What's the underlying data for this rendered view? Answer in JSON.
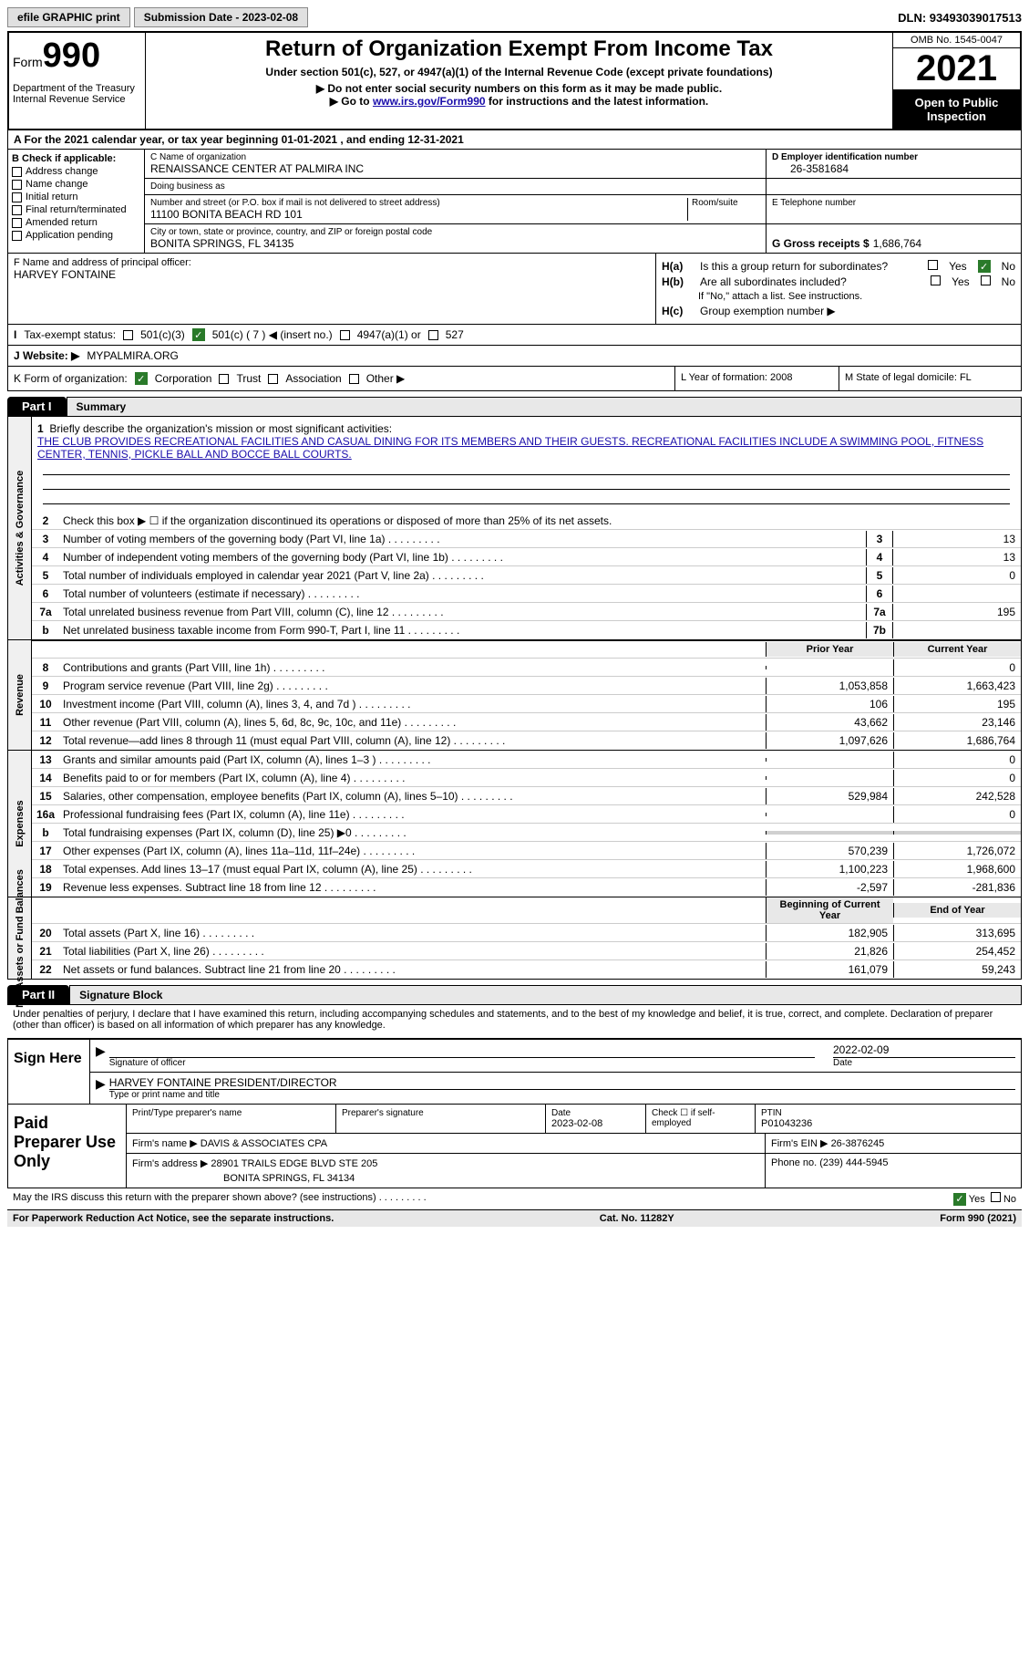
{
  "topbar": {
    "efile": "efile GRAPHIC print",
    "submission": "Submission Date - 2023-02-08",
    "dln": "DLN: 93493039017513"
  },
  "header": {
    "form_prefix": "Form",
    "form_num": "990",
    "title": "Return of Organization Exempt From Income Tax",
    "subtitle": "Under section 501(c), 527, or 4947(a)(1) of the Internal Revenue Code (except private foundations)",
    "instr1": "▶ Do not enter social security numbers on this form as it may be made public.",
    "instr2_pre": "▶ Go to ",
    "instr2_link": "www.irs.gov/Form990",
    "instr2_post": " for instructions and the latest information.",
    "dept": "Department of the Treasury\nInternal Revenue Service",
    "omb": "OMB No. 1545-0047",
    "year": "2021",
    "open": "Open to Public Inspection"
  },
  "row_a": "A For the 2021 calendar year, or tax year beginning 01-01-2021   , and ending 12-31-2021",
  "col_b": {
    "hdr": "B Check if applicable:",
    "items": [
      "Address change",
      "Name change",
      "Initial return",
      "Final return/terminated",
      "Amended return",
      "Application pending"
    ]
  },
  "block_c": {
    "name_lbl": "C Name of organization",
    "name": "RENAISSANCE CENTER AT PALMIRA INC",
    "dba_lbl": "Doing business as",
    "dba": "",
    "addr_lbl": "Number and street (or P.O. box if mail is not delivered to street address)",
    "room_lbl": "Room/suite",
    "addr": "11100 BONITA BEACH RD 101",
    "city_lbl": "City or town, state or province, country, and ZIP or foreign postal code",
    "city": "BONITA SPRINGS, FL  34135"
  },
  "block_d": {
    "ein_lbl": "D Employer identification number",
    "ein": "26-3581684",
    "tel_lbl": "E Telephone number",
    "tel": "",
    "gross_lbl": "G Gross receipts $",
    "gross": "1,686,764"
  },
  "block_f": {
    "lbl": "F Name and address of principal officer:",
    "name": "HARVEY FONTAINE"
  },
  "block_h": {
    "ha": "Is this a group return for subordinates?",
    "hb": "Are all subordinates included?",
    "hb_note": "If \"No,\" attach a list. See instructions.",
    "hc": "Group exemption number ▶",
    "yes": "Yes",
    "no": "No"
  },
  "block_i": {
    "lbl": "Tax-exempt status:",
    "o1": "501(c)(3)",
    "o2": "501(c) ( 7 ) ◀ (insert no.)",
    "o3": "4947(a)(1) or",
    "o4": "527"
  },
  "block_j": {
    "lbl": "J   Website: ▶",
    "val": "MYPALMIRA.ORG"
  },
  "block_k": {
    "lbl": "K Form of organization:",
    "o1": "Corporation",
    "o2": "Trust",
    "o3": "Association",
    "o4": "Other ▶"
  },
  "block_l": "L Year of formation: 2008",
  "block_m": "M State of legal domicile: FL",
  "part1": {
    "tab": "Part I",
    "title": "Summary",
    "mission_lbl": "Briefly describe the organization's mission or most significant activities:",
    "mission": "THE CLUB PROVIDES RECREATIONAL FACILITIES AND CASUAL DINING FOR ITS MEMBERS AND THEIR GUESTS. RECREATIONAL FACILITIES INCLUDE A SWIMMING POOL, FITNESS CENTER, TENNIS, PICKLE BALL AND BOCCE BALL COURTS.",
    "line2": "Check this box ▶ ☐ if the organization discontinued its operations or disposed of more than 25% of its net assets.",
    "lines_gov": [
      {
        "n": "3",
        "t": "Number of voting members of the governing body (Part VI, line 1a)",
        "b": "3",
        "v": "13"
      },
      {
        "n": "4",
        "t": "Number of independent voting members of the governing body (Part VI, line 1b)",
        "b": "4",
        "v": "13"
      },
      {
        "n": "5",
        "t": "Total number of individuals employed in calendar year 2021 (Part V, line 2a)",
        "b": "5",
        "v": "0"
      },
      {
        "n": "6",
        "t": "Total number of volunteers (estimate if necessary)",
        "b": "6",
        "v": ""
      },
      {
        "n": "7a",
        "t": "Total unrelated business revenue from Part VIII, column (C), line 12",
        "b": "7a",
        "v": "195"
      },
      {
        "n": "b",
        "t": "Net unrelated business taxable income from Form 990-T, Part I, line 11",
        "b": "7b",
        "v": ""
      }
    ],
    "col_hdrs": {
      "prior": "Prior Year",
      "current": "Current Year",
      "begin": "Beginning of Current Year",
      "end": "End of Year"
    },
    "revenue": [
      {
        "n": "8",
        "t": "Contributions and grants (Part VIII, line 1h)",
        "p": "",
        "c": "0"
      },
      {
        "n": "9",
        "t": "Program service revenue (Part VIII, line 2g)",
        "p": "1,053,858",
        "c": "1,663,423"
      },
      {
        "n": "10",
        "t": "Investment income (Part VIII, column (A), lines 3, 4, and 7d )",
        "p": "106",
        "c": "195"
      },
      {
        "n": "11",
        "t": "Other revenue (Part VIII, column (A), lines 5, 6d, 8c, 9c, 10c, and 11e)",
        "p": "43,662",
        "c": "23,146"
      },
      {
        "n": "12",
        "t": "Total revenue—add lines 8 through 11 (must equal Part VIII, column (A), line 12)",
        "p": "1,097,626",
        "c": "1,686,764"
      }
    ],
    "expenses": [
      {
        "n": "13",
        "t": "Grants and similar amounts paid (Part IX, column (A), lines 1–3 )",
        "p": "",
        "c": "0"
      },
      {
        "n": "14",
        "t": "Benefits paid to or for members (Part IX, column (A), line 4)",
        "p": "",
        "c": "0"
      },
      {
        "n": "15",
        "t": "Salaries, other compensation, employee benefits (Part IX, column (A), lines 5–10)",
        "p": "529,984",
        "c": "242,528"
      },
      {
        "n": "16a",
        "t": "Professional fundraising fees (Part IX, column (A), line 11e)",
        "p": "",
        "c": "0"
      },
      {
        "n": "b",
        "t": "Total fundraising expenses (Part IX, column (D), line 25) ▶0",
        "p": "gray",
        "c": "gray"
      },
      {
        "n": "17",
        "t": "Other expenses (Part IX, column (A), lines 11a–11d, 11f–24e)",
        "p": "570,239",
        "c": "1,726,072"
      },
      {
        "n": "18",
        "t": "Total expenses. Add lines 13–17 (must equal Part IX, column (A), line 25)",
        "p": "1,100,223",
        "c": "1,968,600"
      },
      {
        "n": "19",
        "t": "Revenue less expenses. Subtract line 18 from line 12",
        "p": "-2,597",
        "c": "-281,836"
      }
    ],
    "netassets": [
      {
        "n": "20",
        "t": "Total assets (Part X, line 16)",
        "p": "182,905",
        "c": "313,695"
      },
      {
        "n": "21",
        "t": "Total liabilities (Part X, line 26)",
        "p": "21,826",
        "c": "254,452"
      },
      {
        "n": "22",
        "t": "Net assets or fund balances. Subtract line 21 from line 20",
        "p": "161,079",
        "c": "59,243"
      }
    ],
    "vlabels": {
      "gov": "Activities & Governance",
      "rev": "Revenue",
      "exp": "Expenses",
      "net": "Net Assets or Fund Balances"
    }
  },
  "part2": {
    "tab": "Part II",
    "title": "Signature Block",
    "decl": "Under penalties of perjury, I declare that I have examined this return, including accompanying schedules and statements, and to the best of my knowledge and belief, it is true, correct, and complete. Declaration of preparer (other than officer) is based on all information of which preparer has any knowledge.",
    "sign_here": "Sign Here",
    "sig_officer": "Signature of officer",
    "sig_date": "2022-02-09",
    "sig_date_lbl": "Date",
    "sig_name": "HARVEY FONTAINE  PRESIDENT/DIRECTOR",
    "sig_name_lbl": "Type or print name and title",
    "paid": "Paid Preparer Use Only",
    "prep_name_lbl": "Print/Type preparer's name",
    "prep_sig_lbl": "Preparer's signature",
    "prep_date_lbl": "Date",
    "prep_date": "2023-02-08",
    "self_emp": "Check ☐ if self-employed",
    "ptin_lbl": "PTIN",
    "ptin": "P01043236",
    "firm_name_lbl": "Firm's name    ▶",
    "firm_name": "DAVIS & ASSOCIATES CPA",
    "firm_ein_lbl": "Firm's EIN ▶",
    "firm_ein": "26-3876245",
    "firm_addr_lbl": "Firm's address ▶",
    "firm_addr": "28901 TRAILS EDGE BLVD STE 205",
    "firm_city": "BONITA SPRINGS, FL  34134",
    "phone_lbl": "Phone no.",
    "phone": "(239) 444-5945",
    "irs_discuss": "May the IRS discuss this return with the preparer shown above? (see instructions)",
    "paperwork": "For Paperwork Reduction Act Notice, see the separate instructions.",
    "cat": "Cat. No. 11282Y",
    "form_foot": "Form 990 (2021)"
  }
}
